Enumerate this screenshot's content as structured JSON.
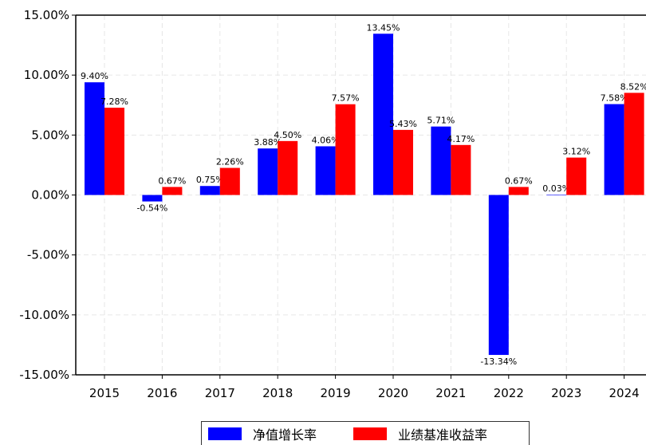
{
  "chart_data": {
    "type": "bar",
    "categories": [
      "2015",
      "2016",
      "2017",
      "2018",
      "2019",
      "2020",
      "2021",
      "2022",
      "2023",
      "2024"
    ],
    "series": [
      {
        "name": "净值增长率",
        "values": [
          9.4,
          -0.54,
          0.75,
          3.88,
          4.06,
          13.45,
          5.71,
          -13.34,
          0.03,
          7.58
        ],
        "labels": [
          "9.40%",
          "-0.54%",
          "0.75%",
          "3.88%",
          "4.06%",
          "13.45%",
          "5.71%",
          "-13.34%",
          "0.03%",
          "7.58%"
        ],
        "color": "#0000ff"
      },
      {
        "name": "业绩基准收益率",
        "values": [
          7.28,
          0.67,
          2.26,
          4.5,
          7.57,
          5.43,
          4.17,
          0.67,
          3.12,
          8.52
        ],
        "labels": [
          "7.28%",
          "0.67%",
          "2.26%",
          "4.50%",
          "7.57%",
          "5.43%",
          "4.17%",
          "0.67%",
          "3.12%",
          "8.52%"
        ],
        "color": "#ff0000"
      }
    ],
    "yticks": [
      "15.00%",
      "10.00%",
      "5.00%",
      "0.00%",
      "-5.00%",
      "-10.00%",
      "-15.00%"
    ],
    "ylim": [
      -15,
      15
    ],
    "grid": true,
    "legend": "bottom-center"
  }
}
